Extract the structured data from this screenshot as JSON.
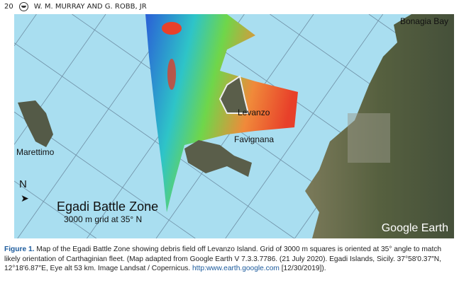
{
  "header": {
    "page_number": "20",
    "authors": "W. M. MURRAY AND G. ROBB, JR"
  },
  "map": {
    "labels": {
      "bonagia": "Bonagia Bay",
      "levanzo": "Levanzo",
      "favignana": "Favignana",
      "marettimo": "Marettimo",
      "north": "N",
      "title": "Egadi Battle Zone",
      "subtitle": "3000 m grid at 35° N",
      "watermark": "Google Earth"
    },
    "colors": {
      "sea": "#a9def0",
      "land": "#4f5a3e",
      "grid": "#6f8fa5"
    }
  },
  "caption": {
    "label": "Figure 1.",
    "text": " Map of the Egadi Battle Zone showing debris field off Levanzo Island. Grid of 3000 m squares is oriented at 35° angle to match likely orientation of Carthaginian fleet. (Map adapted from Google Earth V 7.3.3.7786. (21 July 2020). Egadi Islands, Sicily. 37°58′0.37″N, 12°18′6.87″E, Eye alt 53 km. Image Landsat / Copernicus. ",
    "link": "http:www.earth.google.com",
    "tail": " [12/30/2019])."
  }
}
